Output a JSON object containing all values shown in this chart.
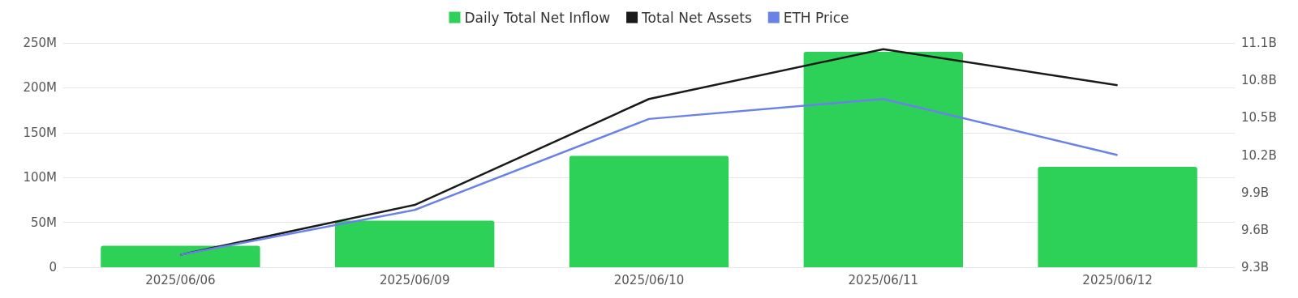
{
  "chart_data": {
    "type": "bar",
    "categories": [
      "2025/06/06",
      "2025/06/09",
      "2025/06/10",
      "2025/06/11",
      "2025/06/12"
    ],
    "series": [
      {
        "name": "Daily Total Net Inflow",
        "color": "#2ed158",
        "values": [
          24,
          52,
          124,
          240,
          112
        ]
      },
      {
        "name": "Total Net Assets",
        "type": "line",
        "color": "#1a1a1a",
        "axis": "y2",
        "values": [
          9.4,
          9.8,
          10.65,
          11.05,
          10.76
        ]
      },
      {
        "name": "ETH Price",
        "type": "line",
        "color": "#6a82e6",
        "axis": "y2",
        "values": [
          9.4,
          9.76,
          10.49,
          10.65,
          10.2
        ]
      }
    ],
    "ylim": [
      0,
      250
    ],
    "yticks": [
      0,
      {
        "value": 50,
        "label": "50M"
      },
      {
        "value": 100,
        "label": "100M"
      },
      {
        "value": 150,
        "label": "150M"
      },
      {
        "value": 200,
        "label": "200M"
      },
      {
        "value": 250,
        "label": "250M"
      }
    ],
    "y2lim": [
      9.3,
      11.1
    ],
    "y2ticks": [
      {
        "value": 9.3,
        "label": "9.3B"
      },
      {
        "value": 9.6,
        "label": "9.6B"
      },
      {
        "value": 9.9,
        "label": "9.9B"
      },
      {
        "value": 10.2,
        "label": "10.2B"
      },
      {
        "value": 10.5,
        "label": "10.5B"
      },
      {
        "value": 10.8,
        "label": "10.8B"
      },
      {
        "value": 11.1,
        "label": "11.1B"
      }
    ],
    "grid": "y",
    "legend": "top",
    "marker": "none",
    "line_style": "solid"
  }
}
